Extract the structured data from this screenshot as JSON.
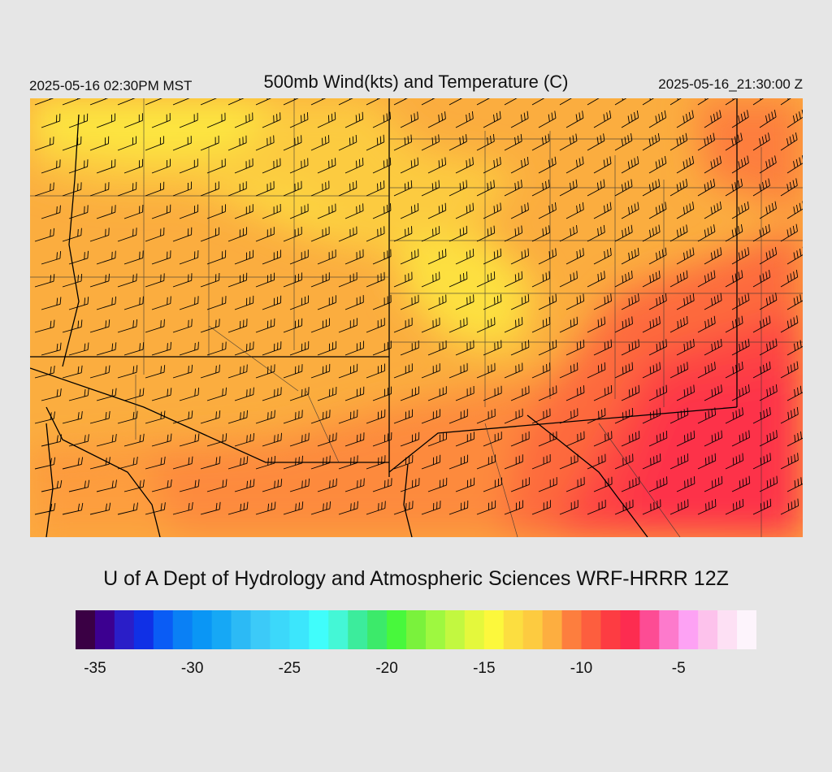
{
  "header": {
    "local_time": "2025-05-16 02:30PM MST",
    "title": "500mb Wind(kts) and Temperature (C)",
    "utc_time": "2025-05-16_21:30:00 Z"
  },
  "credit": "U of A Dept of Hydrology and Atmospheric Sciences WRF-HRRR 12Z",
  "colorbar": {
    "colors": [
      "#3a0044",
      "#3c0090",
      "#2a1ec8",
      "#1030e6",
      "#0a5cf5",
      "#0a80f5",
      "#0a96f5",
      "#16a8f5",
      "#2cbaf5",
      "#3ccaf8",
      "#3cd8fa",
      "#3ce6fc",
      "#40fdfb",
      "#44f7d6",
      "#3cec9c",
      "#3cea6a",
      "#48f83c",
      "#7af23c",
      "#9ef840",
      "#c2f840",
      "#e4f83c",
      "#fcf83c",
      "#fcde40",
      "#fdcb40",
      "#fdae40",
      "#fd7e3e",
      "#fd5e3e",
      "#fd3c42",
      "#fd2c50",
      "#fd4c94",
      "#fd7acc",
      "#fda2f4",
      "#fdc2ec",
      "#fde0f4",
      "#fdf4fc"
    ],
    "tick_labels": [
      "-35",
      "-30",
      "-25",
      "-20",
      "-15",
      "-10",
      "-5"
    ],
    "tick_values": [
      -35,
      -30,
      -25,
      -20,
      -15,
      -10,
      -5
    ],
    "min": -36,
    "max": -1
  },
  "map": {
    "region": "Arizona / New Mexico / Utah / Colorado",
    "barb_color": "#000000",
    "border_color": "#000000"
  }
}
